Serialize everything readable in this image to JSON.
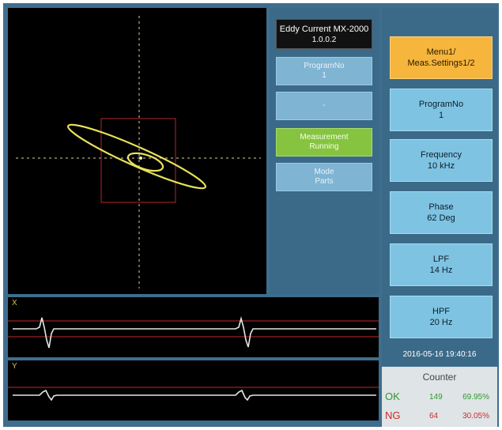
{
  "device": {
    "title": "Eddy Current MX-2000",
    "version": "1.0.0.2"
  },
  "status_buttons": [
    {
      "line1": "ProgramNo",
      "line2": "1",
      "style": "blue"
    },
    {
      "line1": "-",
      "line2": "",
      "style": "blue"
    },
    {
      "line1": "Measurement",
      "line2": "Running",
      "style": "green"
    },
    {
      "line1": "Mode",
      "line2": "Parts",
      "style": "blue"
    }
  ],
  "menu": [
    {
      "line1": "Menu1/",
      "line2": "Meas.Settings1/2",
      "active": true
    },
    {
      "line1": "ProgramNo",
      "line2": "1",
      "active": false
    },
    {
      "line1": "Frequency",
      "line2": "10 kHz",
      "active": false
    },
    {
      "line1": "Phase",
      "line2": "62 Deg",
      "active": false
    },
    {
      "line1": "LPF",
      "line2": "14 Hz",
      "active": false
    },
    {
      "line1": "HPF",
      "line2": "20 Hz",
      "active": false
    }
  ],
  "datetime": "2016-05-16 19:40:16",
  "waveforms": {
    "x_label": "X",
    "y_label": "Y"
  },
  "counter": {
    "title": "Counter",
    "ok": {
      "label": "OK",
      "count": "149",
      "percent": "69.95%"
    },
    "ng": {
      "label": "NG",
      "count": "64",
      "percent": "30.05%"
    }
  },
  "colors": {
    "signal_trace": "#e8e25a",
    "wave_trace": "#e6e6e6",
    "threshold": "#c0282a",
    "active_menu": "#f6b53c",
    "running": "#86c440",
    "ok": "#2e9a2e",
    "ng": "#d02a2a"
  }
}
